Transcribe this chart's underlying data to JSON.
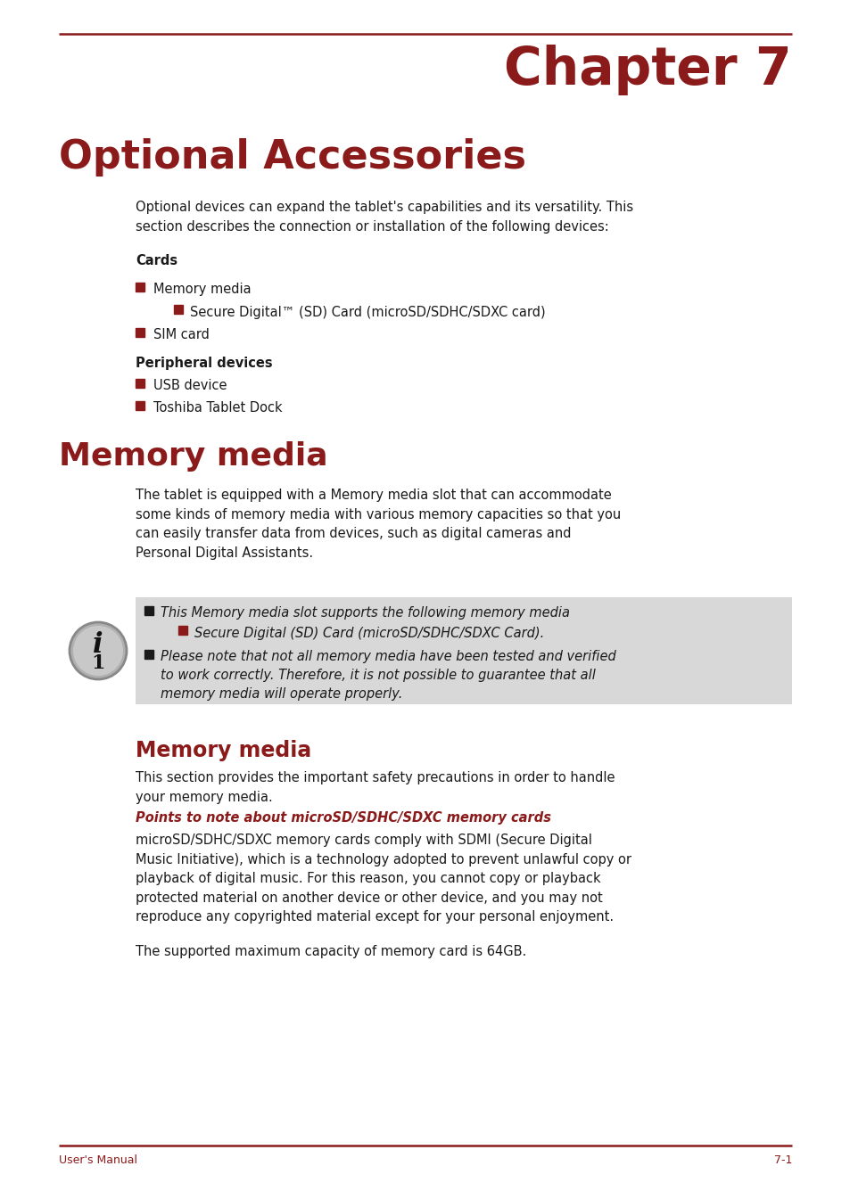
{
  "bg_color": "#ffffff",
  "dark_red": "#8B1A1A",
  "black": "#1a1a1a",
  "gray_box": "#d8d8d8",
  "chapter_text": "Chapter 7",
  "section1_title": "Optional Accessories",
  "section2_title": "Memory media",
  "section3_title": "Memory media",
  "subsection_title": "Points to note about microSD/SDHC/SDXC memory cards",
  "intro_text": "Optional devices can expand the tablet's capabilities and its versatility. This\nsection describes the connection or installation of the following devices:",
  "cards_label": "Cards",
  "bullet1": "Memory media",
  "sub_bullet1": "Secure Digital™ (SD) Card (microSD/SDHC/SDXC card)",
  "bullet2": "SIM card",
  "periph_label": "Peripheral devices",
  "bullet3": "USB device",
  "bullet4": "Toshiba Tablet Dock",
  "mem_intro": "The tablet is equipped with a Memory media slot that can accommodate\nsome kinds of memory media with various memory capacities so that you\ncan easily transfer data from devices, such as digital cameras and\nPersonal Digital Assistants.",
  "note1": "This Memory media slot supports the following memory media",
  "note1_sub": "Secure Digital (SD) Card (microSD/SDHC/SDXC Card).",
  "note2": "Please note that not all memory media have been tested and verified\nto work correctly. Therefore, it is not possible to guarantee that all\nmemory media will operate properly.",
  "mem_section_text": "This section provides the important safety precautions in order to handle\nyour memory media.",
  "points_text": "microSD/SDHC/SDXC memory cards comply with SDMI (Secure Digital\nMusic Initiative), which is a technology adopted to prevent unlawful copy or\nplayback of digital music. For this reason, you cannot copy or playback\nprotected material on another device or other device, and you may not\nreproduce any copyrighted material except for your personal enjoyment.",
  "capacity_text": "The supported maximum capacity of memory card is 64GB.",
  "footer_left": "User's Manual",
  "footer_right": "7-1"
}
